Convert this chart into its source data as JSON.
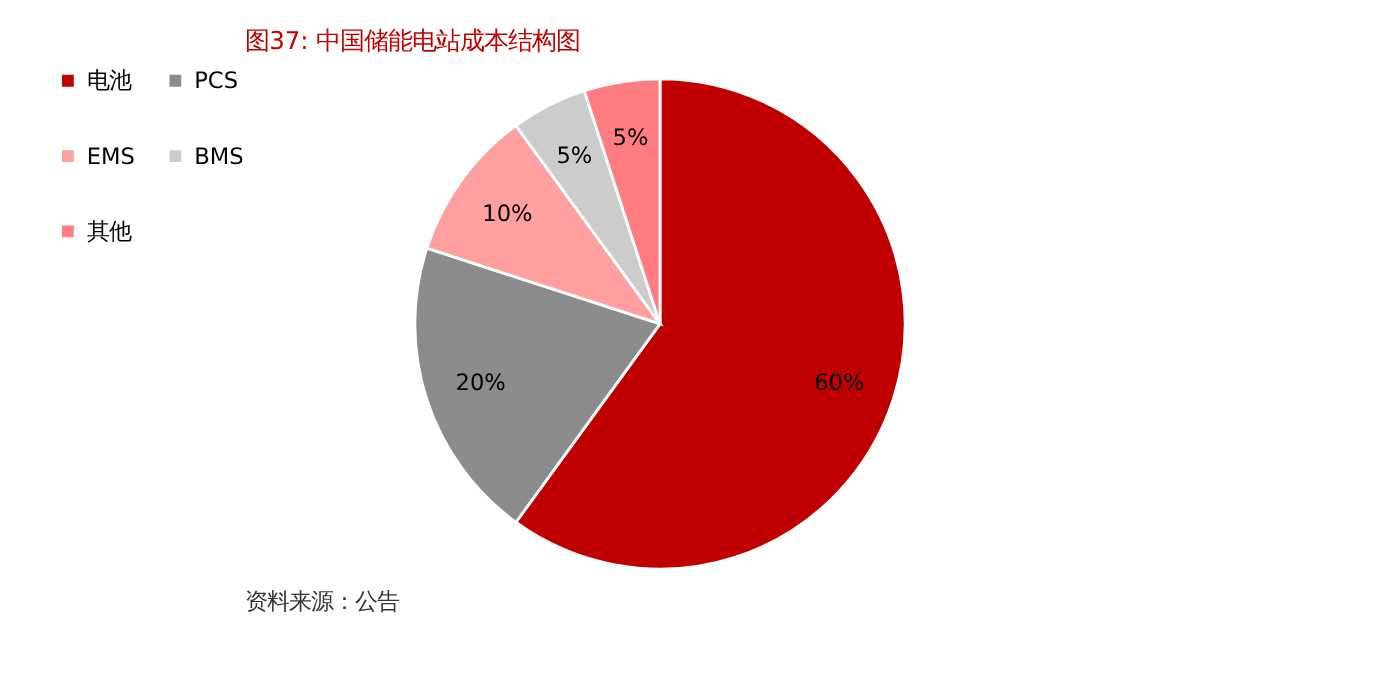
{
  "chart_data": {
    "type": "pie",
    "title": "图37:    中国储能电站成本结构图",
    "categories": [
      "电池",
      "PCS",
      "EMS",
      "BMS",
      "其他"
    ],
    "values": [
      60,
      20,
      10,
      5,
      5
    ],
    "colors": [
      "#c00000",
      "#8c8c8c",
      "#ff9f9f",
      "#cccccc",
      "#ff7c80"
    ],
    "value_labels": [
      "60%",
      "20%",
      "10%",
      "5%",
      "5%"
    ],
    "legend": "left",
    "annotations": [
      "资料来源：公告"
    ]
  }
}
